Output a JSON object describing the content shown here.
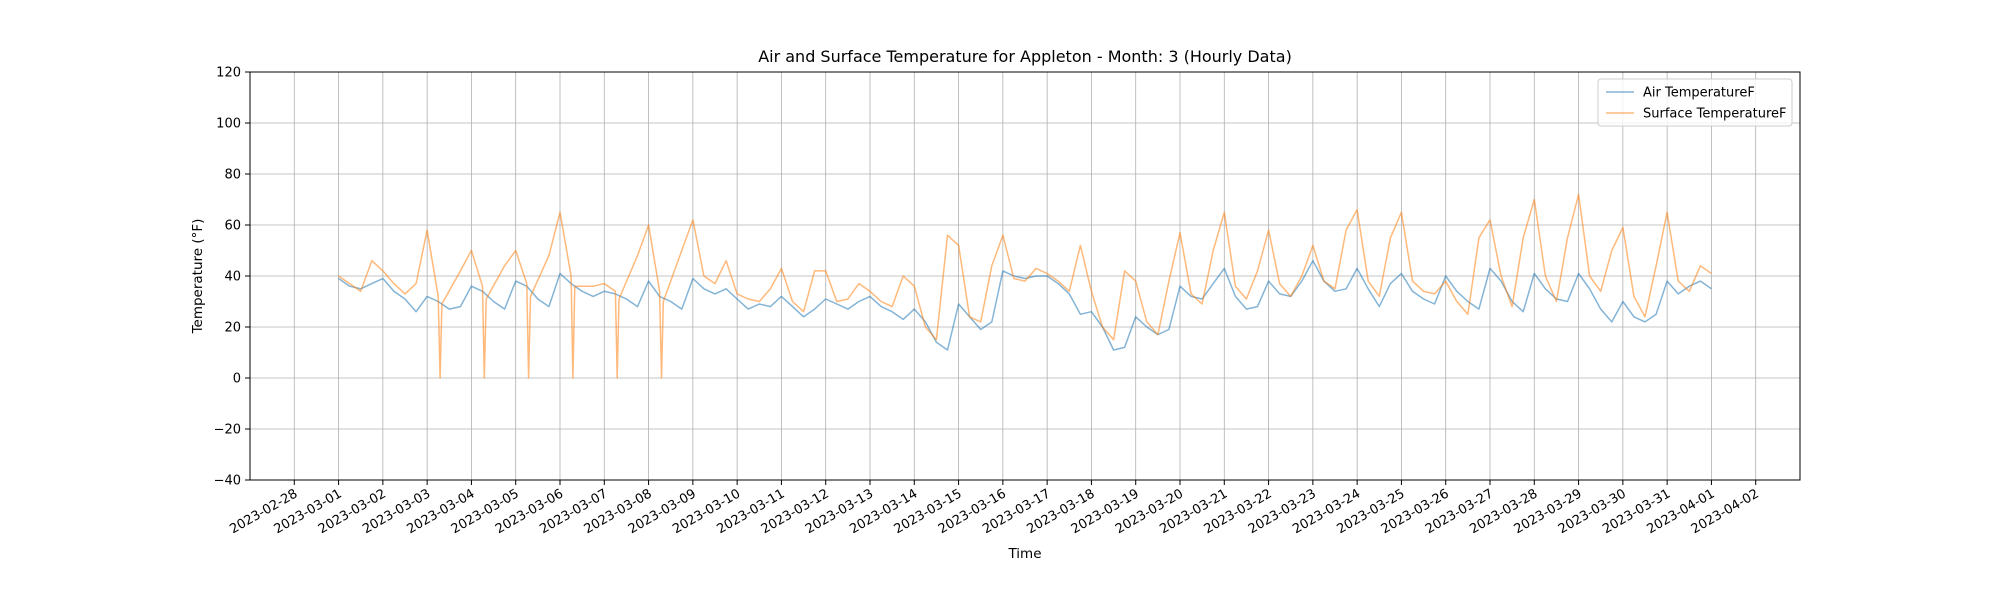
{
  "chart_data": {
    "type": "line",
    "title": "Air and Surface Temperature for Appleton - Month: 3 (Hourly Data)",
    "xlabel": "Time",
    "ylabel": "Temperature (°F)",
    "ylim": [
      -40,
      120
    ],
    "yticks": [
      -40,
      -20,
      0,
      20,
      40,
      60,
      80,
      100,
      120
    ],
    "xlim": [
      "2023-02-27T00:00",
      "2023-04-03T00:00"
    ],
    "xticks": [
      "2023-02-28",
      "2023-03-01",
      "2023-03-02",
      "2023-03-03",
      "2023-03-04",
      "2023-03-05",
      "2023-03-06",
      "2023-03-07",
      "2023-03-08",
      "2023-03-09",
      "2023-03-10",
      "2023-03-11",
      "2023-03-12",
      "2023-03-13",
      "2023-03-14",
      "2023-03-15",
      "2023-03-16",
      "2023-03-17",
      "2023-03-18",
      "2023-03-19",
      "2023-03-20",
      "2023-03-21",
      "2023-03-22",
      "2023-03-23",
      "2023-03-24",
      "2023-03-25",
      "2023-03-26",
      "2023-03-27",
      "2023-03-28",
      "2023-03-29",
      "2023-03-30",
      "2023-03-31",
      "2023-04-01",
      "2023-04-02"
    ],
    "grid": true,
    "legend_position": "top-right",
    "series": [
      {
        "name": "Air TemperatureF",
        "color": "#1f77b4",
        "points": [
          [
            "2023-03-01T00:00",
            39
          ],
          [
            "2023-03-01T06:00",
            36
          ],
          [
            "2023-03-01T12:00",
            35
          ],
          [
            "2023-03-01T18:00",
            37
          ],
          [
            "2023-03-02T00:00",
            39
          ],
          [
            "2023-03-02T06:00",
            34
          ],
          [
            "2023-03-02T12:00",
            31
          ],
          [
            "2023-03-02T18:00",
            26
          ],
          [
            "2023-03-03T00:00",
            32
          ],
          [
            "2023-03-03T06:00",
            30
          ],
          [
            "2023-03-03T12:00",
            27
          ],
          [
            "2023-03-03T18:00",
            28
          ],
          [
            "2023-03-04T00:00",
            36
          ],
          [
            "2023-03-04T06:00",
            34
          ],
          [
            "2023-03-04T12:00",
            30
          ],
          [
            "2023-03-04T18:00",
            27
          ],
          [
            "2023-03-05T00:00",
            38
          ],
          [
            "2023-03-05T06:00",
            36
          ],
          [
            "2023-03-05T12:00",
            31
          ],
          [
            "2023-03-05T18:00",
            28
          ],
          [
            "2023-03-06T00:00",
            41
          ],
          [
            "2023-03-06T06:00",
            37
          ],
          [
            "2023-03-06T12:00",
            34
          ],
          [
            "2023-03-06T18:00",
            32
          ],
          [
            "2023-03-07T00:00",
            34
          ],
          [
            "2023-03-07T06:00",
            33
          ],
          [
            "2023-03-07T12:00",
            31
          ],
          [
            "2023-03-07T18:00",
            28
          ],
          [
            "2023-03-08T00:00",
            38
          ],
          [
            "2023-03-08T06:00",
            32
          ],
          [
            "2023-03-08T12:00",
            30
          ],
          [
            "2023-03-08T18:00",
            27
          ],
          [
            "2023-03-09T00:00",
            39
          ],
          [
            "2023-03-09T06:00",
            35
          ],
          [
            "2023-03-09T12:00",
            33
          ],
          [
            "2023-03-09T18:00",
            35
          ],
          [
            "2023-03-10T00:00",
            31
          ],
          [
            "2023-03-10T06:00",
            27
          ],
          [
            "2023-03-10T12:00",
            29
          ],
          [
            "2023-03-10T18:00",
            28
          ],
          [
            "2023-03-11T00:00",
            32
          ],
          [
            "2023-03-11T06:00",
            28
          ],
          [
            "2023-03-11T12:00",
            24
          ],
          [
            "2023-03-11T18:00",
            27
          ],
          [
            "2023-03-12T00:00",
            31
          ],
          [
            "2023-03-12T06:00",
            29
          ],
          [
            "2023-03-12T12:00",
            27
          ],
          [
            "2023-03-12T18:00",
            30
          ],
          [
            "2023-03-13T00:00",
            32
          ],
          [
            "2023-03-13T06:00",
            28
          ],
          [
            "2023-03-13T12:00",
            26
          ],
          [
            "2023-03-13T18:00",
            23
          ],
          [
            "2023-03-14T00:00",
            27
          ],
          [
            "2023-03-14T06:00",
            22
          ],
          [
            "2023-03-14T12:00",
            14
          ],
          [
            "2023-03-14T18:00",
            11
          ],
          [
            "2023-03-15T00:00",
            29
          ],
          [
            "2023-03-15T06:00",
            24
          ],
          [
            "2023-03-15T12:00",
            19
          ],
          [
            "2023-03-15T18:00",
            22
          ],
          [
            "2023-03-16T00:00",
            42
          ],
          [
            "2023-03-16T06:00",
            40
          ],
          [
            "2023-03-16T12:00",
            39
          ],
          [
            "2023-03-16T18:00",
            40
          ],
          [
            "2023-03-17T00:00",
            40
          ],
          [
            "2023-03-17T06:00",
            37
          ],
          [
            "2023-03-17T12:00",
            33
          ],
          [
            "2023-03-17T18:00",
            25
          ],
          [
            "2023-03-18T00:00",
            26
          ],
          [
            "2023-03-18T06:00",
            20
          ],
          [
            "2023-03-18T12:00",
            11
          ],
          [
            "2023-03-18T18:00",
            12
          ],
          [
            "2023-03-19T00:00",
            24
          ],
          [
            "2023-03-19T06:00",
            20
          ],
          [
            "2023-03-19T12:00",
            17
          ],
          [
            "2023-03-19T18:00",
            19
          ],
          [
            "2023-03-20T00:00",
            36
          ],
          [
            "2023-03-20T06:00",
            32
          ],
          [
            "2023-03-20T12:00",
            31
          ],
          [
            "2023-03-20T18:00",
            37
          ],
          [
            "2023-03-21T00:00",
            43
          ],
          [
            "2023-03-21T06:00",
            32
          ],
          [
            "2023-03-21T12:00",
            27
          ],
          [
            "2023-03-21T18:00",
            28
          ],
          [
            "2023-03-22T00:00",
            38
          ],
          [
            "2023-03-22T06:00",
            33
          ],
          [
            "2023-03-22T12:00",
            32
          ],
          [
            "2023-03-22T18:00",
            38
          ],
          [
            "2023-03-23T00:00",
            46
          ],
          [
            "2023-03-23T06:00",
            38
          ],
          [
            "2023-03-23T12:00",
            34
          ],
          [
            "2023-03-23T18:00",
            35
          ],
          [
            "2023-03-24T00:00",
            43
          ],
          [
            "2023-03-24T06:00",
            35
          ],
          [
            "2023-03-24T12:00",
            28
          ],
          [
            "2023-03-24T18:00",
            37
          ],
          [
            "2023-03-25T00:00",
            41
          ],
          [
            "2023-03-25T06:00",
            34
          ],
          [
            "2023-03-25T12:00",
            31
          ],
          [
            "2023-03-25T18:00",
            29
          ],
          [
            "2023-03-26T00:00",
            40
          ],
          [
            "2023-03-26T06:00",
            34
          ],
          [
            "2023-03-26T12:00",
            30
          ],
          [
            "2023-03-26T18:00",
            27
          ],
          [
            "2023-03-27T00:00",
            43
          ],
          [
            "2023-03-27T06:00",
            38
          ],
          [
            "2023-03-27T12:00",
            30
          ],
          [
            "2023-03-27T18:00",
            26
          ],
          [
            "2023-03-28T00:00",
            41
          ],
          [
            "2023-03-28T06:00",
            35
          ],
          [
            "2023-03-28T12:00",
            31
          ],
          [
            "2023-03-28T18:00",
            30
          ],
          [
            "2023-03-29T00:00",
            41
          ],
          [
            "2023-03-29T06:00",
            35
          ],
          [
            "2023-03-29T12:00",
            27
          ],
          [
            "2023-03-29T18:00",
            22
          ],
          [
            "2023-03-30T00:00",
            30
          ],
          [
            "2023-03-30T06:00",
            24
          ],
          [
            "2023-03-30T12:00",
            22
          ],
          [
            "2023-03-30T18:00",
            25
          ],
          [
            "2023-03-31T00:00",
            38
          ],
          [
            "2023-03-31T06:00",
            33
          ],
          [
            "2023-03-31T12:00",
            36
          ],
          [
            "2023-03-31T18:00",
            38
          ],
          [
            "2023-04-01T00:00",
            35
          ]
        ]
      },
      {
        "name": "Surface TemperatureF",
        "color": "#ff7f0e",
        "points": [
          [
            "2023-03-01T00:00",
            40
          ],
          [
            "2023-03-01T06:00",
            37
          ],
          [
            "2023-03-01T12:00",
            34
          ],
          [
            "2023-03-01T18:00",
            46
          ],
          [
            "2023-03-02T00:00",
            42
          ],
          [
            "2023-03-02T06:00",
            37
          ],
          [
            "2023-03-02T12:00",
            33
          ],
          [
            "2023-03-02T18:00",
            37
          ],
          [
            "2023-03-03T00:00",
            58
          ],
          [
            "2023-03-03T06:00",
            32
          ],
          [
            "2023-03-03T07:00",
            0
          ],
          [
            "2023-03-03T08:00",
            29
          ],
          [
            "2023-03-03T18:00",
            42
          ],
          [
            "2023-03-04T00:00",
            50
          ],
          [
            "2023-03-04T06:00",
            36
          ],
          [
            "2023-03-04T07:00",
            0
          ],
          [
            "2023-03-04T08:00",
            31
          ],
          [
            "2023-03-04T18:00",
            44
          ],
          [
            "2023-03-05T00:00",
            50
          ],
          [
            "2023-03-05T06:00",
            37
          ],
          [
            "2023-03-05T07:00",
            0
          ],
          [
            "2023-03-05T08:00",
            32
          ],
          [
            "2023-03-05T18:00",
            48
          ],
          [
            "2023-03-06T00:00",
            65
          ],
          [
            "2023-03-06T06:00",
            40
          ],
          [
            "2023-03-06T07:00",
            0
          ],
          [
            "2023-03-06T08:00",
            36
          ],
          [
            "2023-03-06T18:00",
            36
          ],
          [
            "2023-03-07T00:00",
            37
          ],
          [
            "2023-03-07T06:00",
            34
          ],
          [
            "2023-03-07T07:00",
            0
          ],
          [
            "2023-03-07T08:00",
            31
          ],
          [
            "2023-03-07T18:00",
            48
          ],
          [
            "2023-03-08T00:00",
            60
          ],
          [
            "2023-03-08T06:00",
            34
          ],
          [
            "2023-03-08T07:00",
            0
          ],
          [
            "2023-03-08T08:00",
            30
          ],
          [
            "2023-03-08T18:00",
            50
          ],
          [
            "2023-03-09T00:00",
            62
          ],
          [
            "2023-03-09T06:00",
            40
          ],
          [
            "2023-03-09T12:00",
            37
          ],
          [
            "2023-03-09T18:00",
            46
          ],
          [
            "2023-03-10T00:00",
            33
          ],
          [
            "2023-03-10T06:00",
            31
          ],
          [
            "2023-03-10T12:00",
            30
          ],
          [
            "2023-03-10T18:00",
            35
          ],
          [
            "2023-03-11T00:00",
            43
          ],
          [
            "2023-03-11T06:00",
            30
          ],
          [
            "2023-03-11T12:00",
            26
          ],
          [
            "2023-03-11T18:00",
            42
          ],
          [
            "2023-03-12T00:00",
            42
          ],
          [
            "2023-03-12T06:00",
            30
          ],
          [
            "2023-03-12T12:00",
            31
          ],
          [
            "2023-03-12T18:00",
            37
          ],
          [
            "2023-03-13T00:00",
            34
          ],
          [
            "2023-03-13T06:00",
            30
          ],
          [
            "2023-03-13T12:00",
            28
          ],
          [
            "2023-03-13T18:00",
            40
          ],
          [
            "2023-03-14T00:00",
            36
          ],
          [
            "2023-03-14T06:00",
            20
          ],
          [
            "2023-03-14T12:00",
            15
          ],
          [
            "2023-03-14T18:00",
            56
          ],
          [
            "2023-03-15T00:00",
            52
          ],
          [
            "2023-03-15T06:00",
            24
          ],
          [
            "2023-03-15T12:00",
            22
          ],
          [
            "2023-03-15T18:00",
            44
          ],
          [
            "2023-03-16T00:00",
            56
          ],
          [
            "2023-03-16T06:00",
            39
          ],
          [
            "2023-03-16T12:00",
            38
          ],
          [
            "2023-03-16T18:00",
            43
          ],
          [
            "2023-03-17T00:00",
            41
          ],
          [
            "2023-03-17T06:00",
            38
          ],
          [
            "2023-03-17T12:00",
            34
          ],
          [
            "2023-03-17T18:00",
            52
          ],
          [
            "2023-03-18T00:00",
            34
          ],
          [
            "2023-03-18T06:00",
            20
          ],
          [
            "2023-03-18T12:00",
            15
          ],
          [
            "2023-03-18T18:00",
            42
          ],
          [
            "2023-03-19T00:00",
            38
          ],
          [
            "2023-03-19T06:00",
            22
          ],
          [
            "2023-03-19T12:00",
            17
          ],
          [
            "2023-03-19T18:00",
            38
          ],
          [
            "2023-03-20T00:00",
            57
          ],
          [
            "2023-03-20T06:00",
            33
          ],
          [
            "2023-03-20T12:00",
            29
          ],
          [
            "2023-03-20T18:00",
            50
          ],
          [
            "2023-03-21T00:00",
            65
          ],
          [
            "2023-03-21T06:00",
            36
          ],
          [
            "2023-03-21T12:00",
            31
          ],
          [
            "2023-03-21T18:00",
            42
          ],
          [
            "2023-03-22T00:00",
            58
          ],
          [
            "2023-03-22T06:00",
            37
          ],
          [
            "2023-03-22T12:00",
            32
          ],
          [
            "2023-03-22T18:00",
            40
          ],
          [
            "2023-03-23T00:00",
            52
          ],
          [
            "2023-03-23T06:00",
            38
          ],
          [
            "2023-03-23T12:00",
            35
          ],
          [
            "2023-03-23T18:00",
            58
          ],
          [
            "2023-03-24T00:00",
            66
          ],
          [
            "2023-03-24T06:00",
            38
          ],
          [
            "2023-03-24T12:00",
            32
          ],
          [
            "2023-03-24T18:00",
            55
          ],
          [
            "2023-03-25T00:00",
            65
          ],
          [
            "2023-03-25T06:00",
            38
          ],
          [
            "2023-03-25T12:00",
            34
          ],
          [
            "2023-03-25T18:00",
            33
          ],
          [
            "2023-03-26T00:00",
            38
          ],
          [
            "2023-03-26T06:00",
            30
          ],
          [
            "2023-03-26T12:00",
            25
          ],
          [
            "2023-03-26T18:00",
            55
          ],
          [
            "2023-03-27T00:00",
            62
          ],
          [
            "2023-03-27T06:00",
            40
          ],
          [
            "2023-03-27T12:00",
            28
          ],
          [
            "2023-03-27T18:00",
            55
          ],
          [
            "2023-03-28T00:00",
            70
          ],
          [
            "2023-03-28T06:00",
            40
          ],
          [
            "2023-03-28T12:00",
            30
          ],
          [
            "2023-03-28T18:00",
            55
          ],
          [
            "2023-03-29T00:00",
            72
          ],
          [
            "2023-03-29T06:00",
            40
          ],
          [
            "2023-03-29T12:00",
            34
          ],
          [
            "2023-03-29T18:00",
            50
          ],
          [
            "2023-03-30T00:00",
            59
          ],
          [
            "2023-03-30T06:00",
            32
          ],
          [
            "2023-03-30T12:00",
            24
          ],
          [
            "2023-03-30T18:00",
            44
          ],
          [
            "2023-03-31T00:00",
            65
          ],
          [
            "2023-03-31T06:00",
            38
          ],
          [
            "2023-03-31T12:00",
            34
          ],
          [
            "2023-03-31T18:00",
            44
          ],
          [
            "2023-04-01T00:00",
            41
          ]
        ]
      }
    ]
  }
}
